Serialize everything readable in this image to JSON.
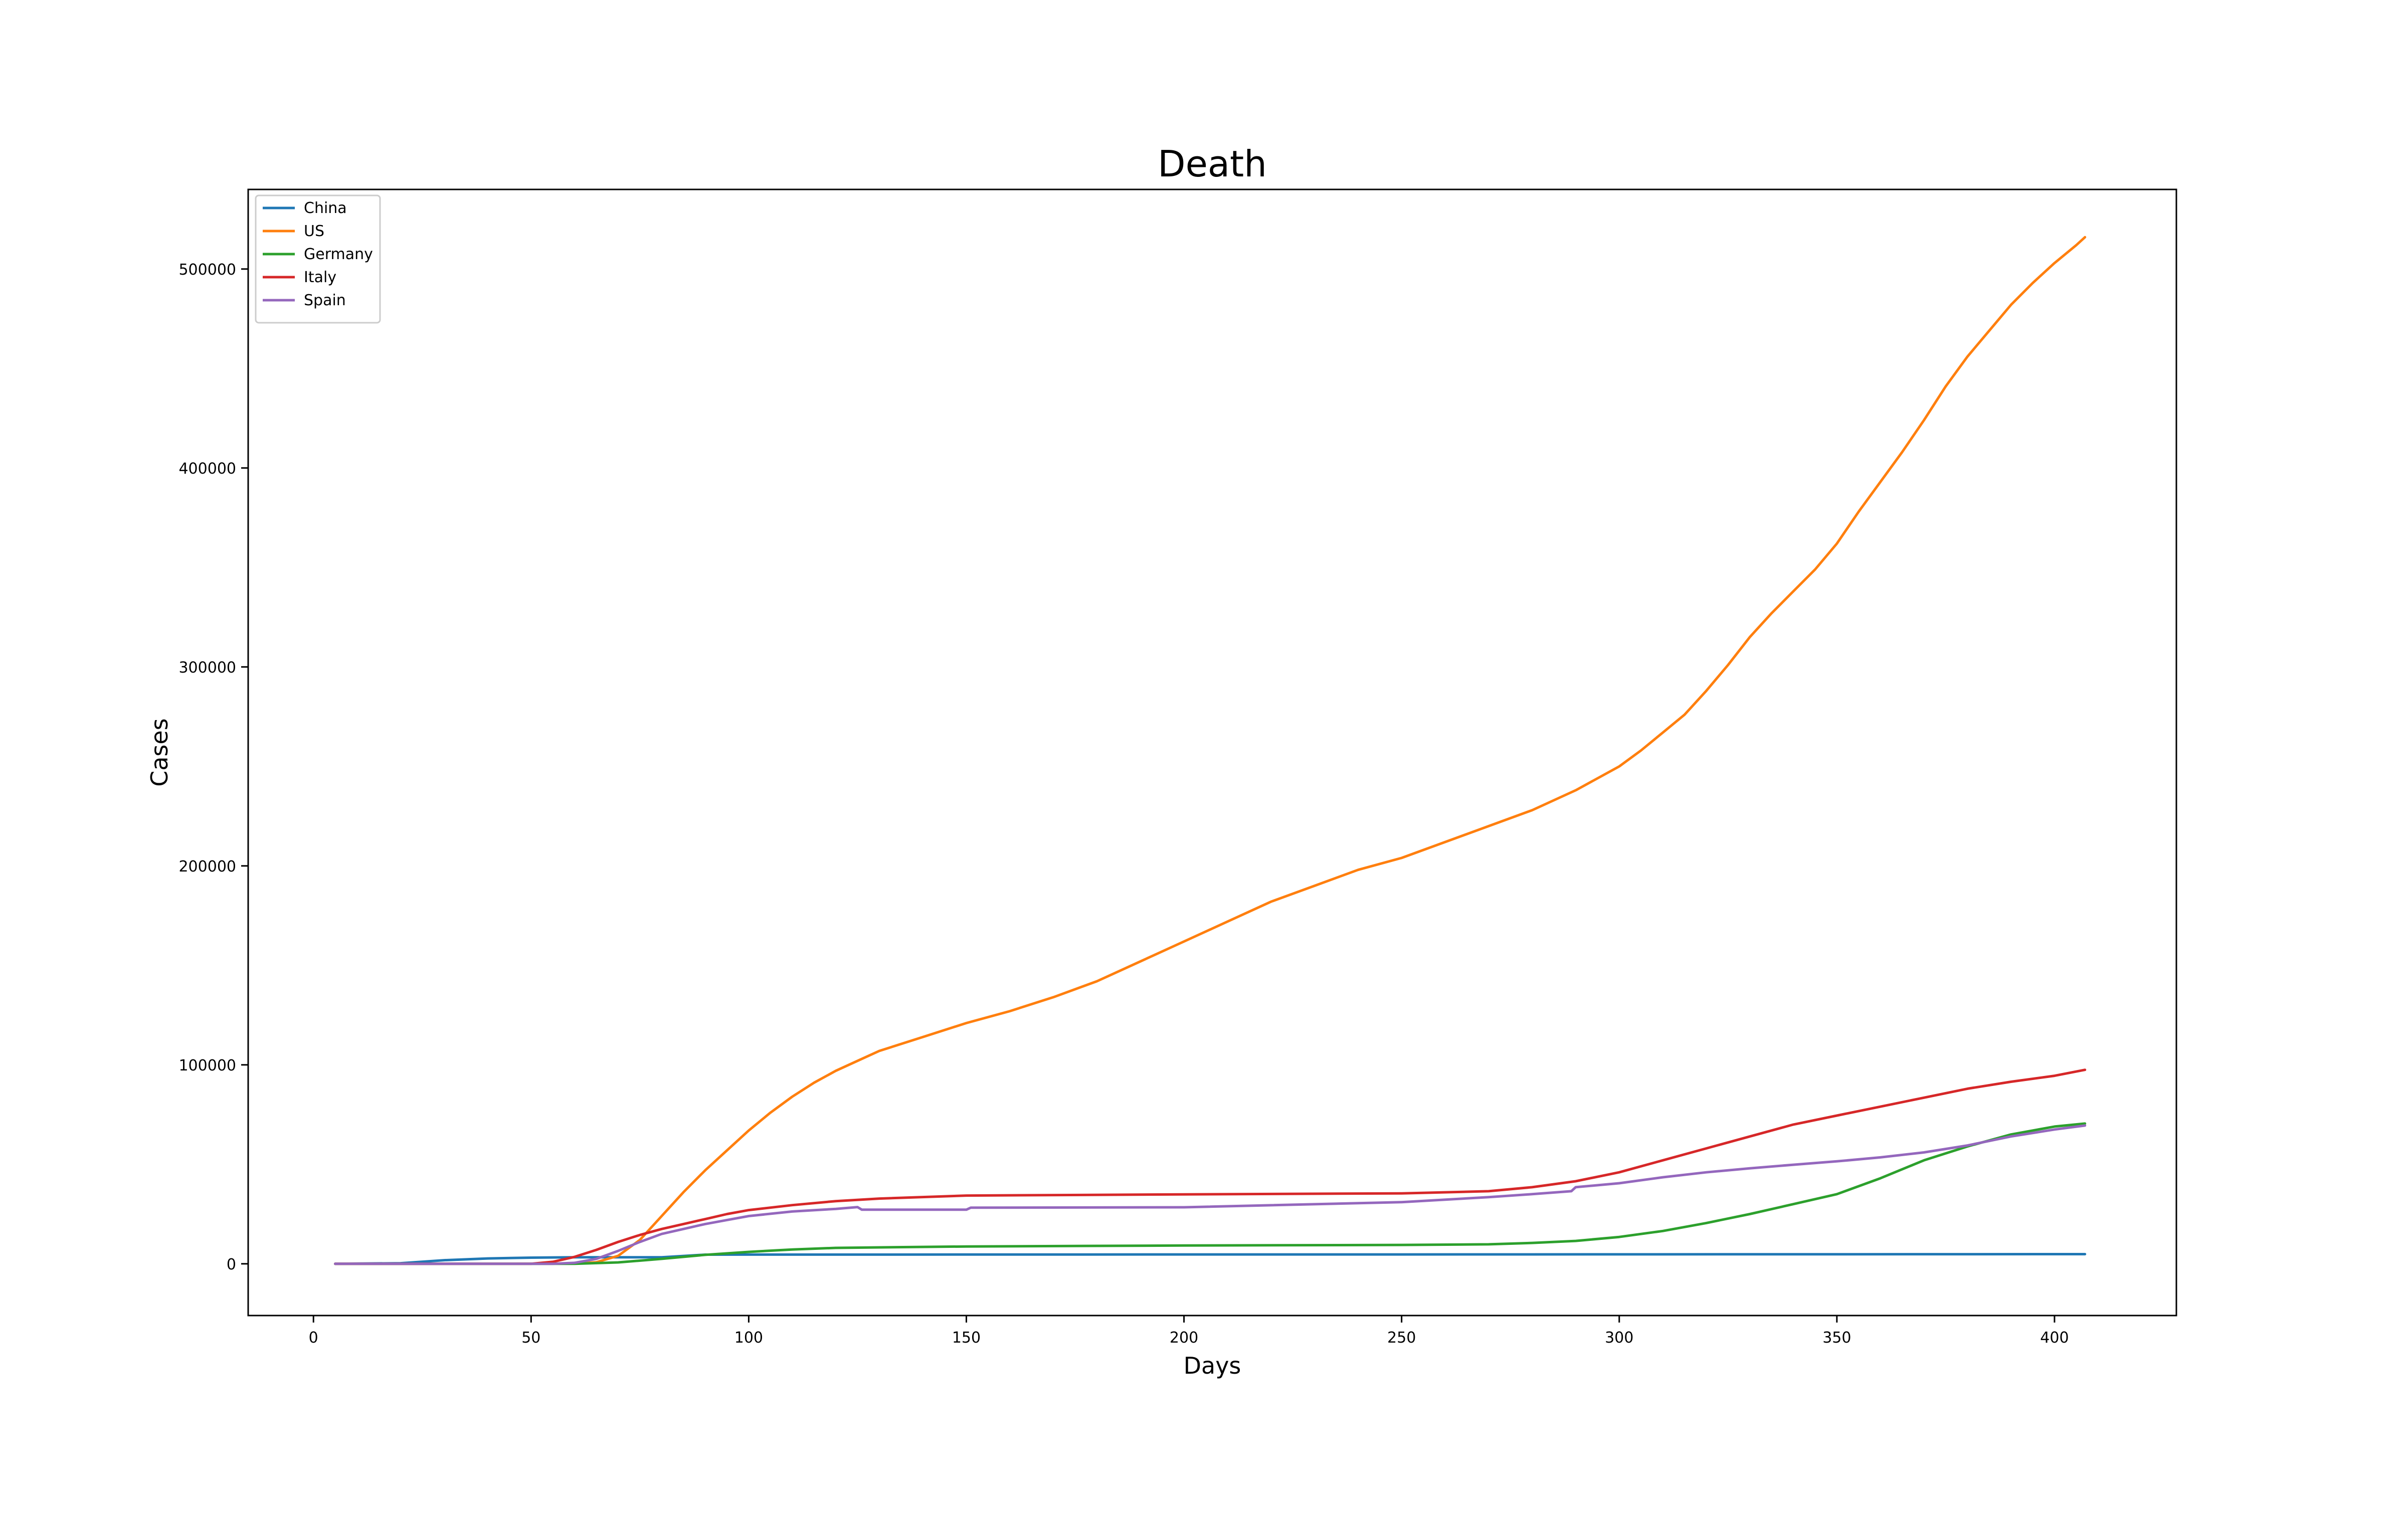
{
  "chart_data": {
    "type": "line",
    "title": "Death",
    "xlabel": "Days",
    "ylabel": "Cases",
    "xlim": [
      -15,
      428
    ],
    "ylim": [
      -26000,
      540000
    ],
    "xticks": [
      0,
      50,
      100,
      150,
      200,
      250,
      300,
      350,
      400
    ],
    "yticks": [
      0,
      100000,
      200000,
      300000,
      400000,
      500000
    ],
    "grid": false,
    "legend_position": "top-left",
    "series": [
      {
        "name": "China",
        "color": "#1f77b4",
        "x": [
          5,
          20,
          30,
          40,
          50,
          60,
          70,
          80,
          90,
          100,
          150,
          200,
          250,
          300,
          350,
          407
        ],
        "y": [
          0,
          300,
          1800,
          2700,
          3100,
          3300,
          3300,
          3300,
          4600,
          4630,
          4650,
          4700,
          4700,
          4750,
          4800,
          4850
        ]
      },
      {
        "name": "US",
        "color": "#ff7f0e",
        "x": [
          5,
          60,
          65,
          70,
          75,
          80,
          85,
          90,
          95,
          100,
          105,
          110,
          115,
          120,
          125,
          130,
          140,
          150,
          160,
          170,
          180,
          190,
          200,
          210,
          220,
          230,
          240,
          250,
          260,
          270,
          280,
          290,
          300,
          305,
          310,
          315,
          320,
          325,
          330,
          335,
          340,
          345,
          350,
          355,
          360,
          365,
          370,
          375,
          380,
          385,
          390,
          395,
          400,
          405,
          407
        ],
        "y": [
          0,
          100,
          800,
          4000,
          12000,
          24000,
          36000,
          47000,
          57000,
          67000,
          76000,
          84000,
          91000,
          97000,
          102000,
          107000,
          114000,
          121000,
          127000,
          134000,
          142000,
          152000,
          162000,
          172000,
          182000,
          190000,
          198000,
          204000,
          212000,
          220000,
          228000,
          238000,
          250000,
          258000,
          267000,
          276000,
          288000,
          301000,
          315000,
          327000,
          338000,
          349000,
          362000,
          378000,
          393000,
          408000,
          424000,
          441000,
          456000,
          469000,
          482000,
          493000,
          503000,
          512000,
          516000
        ]
      },
      {
        "name": "Germany",
        "color": "#2ca02c",
        "x": [
          5,
          60,
          70,
          80,
          90,
          100,
          110,
          120,
          150,
          200,
          250,
          270,
          280,
          290,
          300,
          310,
          320,
          330,
          340,
          350,
          360,
          370,
          380,
          390,
          400,
          407
        ],
        "y": [
          0,
          0,
          700,
          2500,
          4500,
          6000,
          7200,
          8000,
          8700,
          9200,
          9500,
          9800,
          10500,
          11500,
          13500,
          16500,
          20500,
          25000,
          30000,
          35000,
          43000,
          52000,
          59000,
          65000,
          69000,
          70500
        ]
      },
      {
        "name": "Italy",
        "color": "#d62728",
        "x": [
          5,
          50,
          55,
          60,
          65,
          70,
          75,
          80,
          85,
          90,
          95,
          100,
          110,
          120,
          130,
          150,
          200,
          250,
          270,
          280,
          290,
          300,
          310,
          320,
          330,
          340,
          350,
          360,
          370,
          380,
          390,
          400,
          407
        ],
        "y": [
          0,
          0,
          1000,
          3500,
          7000,
          11000,
          14500,
          17500,
          20000,
          22500,
          25000,
          27000,
          29500,
          31500,
          32800,
          34300,
          34900,
          35400,
          36500,
          38500,
          41500,
          46000,
          52000,
          58000,
          64000,
          70000,
          74500,
          79000,
          83500,
          88000,
          91500,
          94500,
          97500
        ]
      },
      {
        "name": "Spain",
        "color": "#9467bd",
        "x": [
          5,
          55,
          60,
          65,
          70,
          75,
          80,
          85,
          90,
          95,
          100,
          110,
          120,
          125,
          126,
          150,
          151,
          200,
          250,
          270,
          280,
          289,
          290,
          300,
          310,
          320,
          330,
          340,
          350,
          360,
          370,
          380,
          390,
          400,
          407
        ],
        "y": [
          0,
          0,
          500,
          2500,
          6500,
          11000,
          15000,
          17500,
          20000,
          22000,
          24000,
          26300,
          27600,
          28500,
          27200,
          27200,
          28200,
          28400,
          31000,
          33500,
          35000,
          36500,
          38500,
          40500,
          43500,
          46000,
          48000,
          49800,
          51500,
          53500,
          56000,
          59500,
          64000,
          67500,
          69500
        ]
      }
    ]
  }
}
